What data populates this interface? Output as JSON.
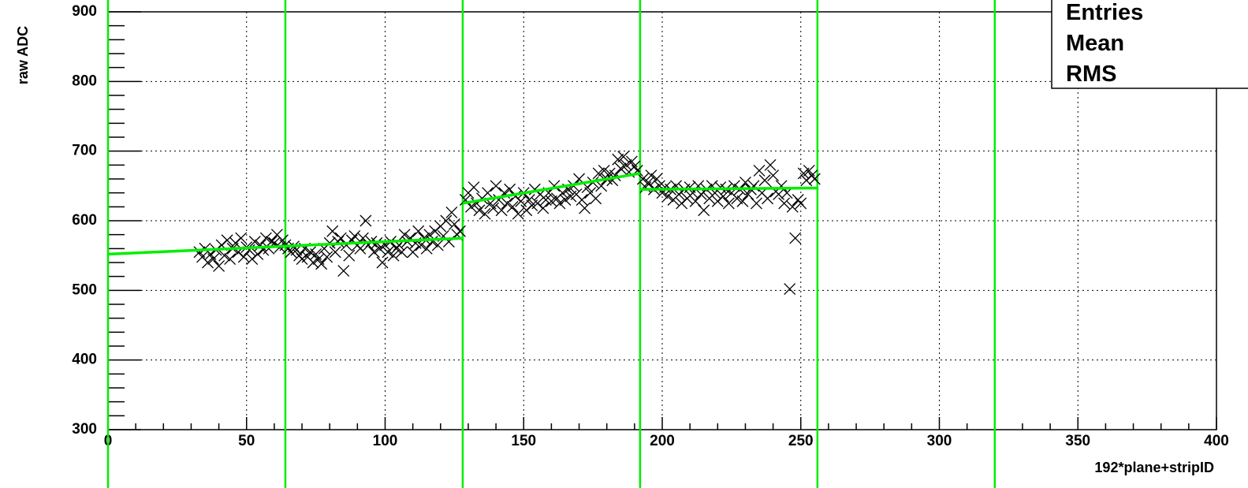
{
  "chart_data": {
    "type": "scatter",
    "x_label": "192*plane+stripID",
    "y_label": "raw ADC",
    "stats_labels": [
      "Entries",
      "Mean",
      "RMS"
    ],
    "xlim": [
      0,
      400
    ],
    "ylim": [
      300,
      900
    ],
    "xticks": [
      0,
      50,
      100,
      150,
      200,
      250,
      300,
      350,
      400
    ],
    "yticks": [
      300,
      400,
      500,
      600,
      700,
      800,
      900
    ],
    "xminorticks": [
      10,
      20,
      30,
      40,
      60,
      70,
      80,
      90,
      110,
      120,
      130,
      140,
      160,
      170,
      180,
      190,
      210,
      220,
      230,
      240,
      260,
      270,
      280,
      290,
      310,
      320,
      330,
      340,
      360,
      370,
      380,
      390
    ],
    "yminorticks": [
      320,
      340,
      360,
      380,
      420,
      440,
      460,
      480,
      520,
      540,
      560,
      580,
      620,
      640,
      660,
      680,
      720,
      740,
      760,
      780,
      820,
      840,
      860,
      880
    ],
    "grid": true,
    "color": "#000000",
    "line_color": "#00ee00",
    "vlines": [
      0,
      64,
      128,
      192,
      256,
      320
    ],
    "fits": [
      {
        "x": [
          0,
          128
        ],
        "values": [
          552,
          575
        ]
      },
      {
        "x": [
          128,
          192
        ],
        "values": [
          625,
          668
        ]
      },
      {
        "x": [
          192,
          256
        ],
        "values": [
          645,
          647
        ]
      }
    ],
    "x": [
      33,
      34,
      35,
      36,
      37,
      38,
      39,
      40,
      41,
      42,
      43,
      44,
      45,
      46,
      47,
      48,
      49,
      50,
      51,
      52,
      53,
      54,
      55,
      56,
      57,
      58,
      59,
      60,
      61,
      62,
      63,
      64,
      65,
      66,
      67,
      68,
      69,
      70,
      71,
      72,
      73,
      74,
      75,
      76,
      77,
      78,
      79,
      80,
      81,
      82,
      83,
      84,
      85,
      86,
      87,
      88,
      89,
      90,
      91,
      92,
      93,
      94,
      95,
      96,
      97,
      98,
      99,
      100,
      101,
      102,
      103,
      104,
      105,
      106,
      107,
      108,
      109,
      110,
      111,
      112,
      113,
      114,
      115,
      116,
      117,
      118,
      119,
      120,
      121,
      122,
      123,
      124,
      125,
      126,
      127,
      129,
      130,
      131,
      132,
      133,
      134,
      135,
      136,
      137,
      138,
      139,
      140,
      141,
      142,
      143,
      144,
      145,
      146,
      147,
      148,
      149,
      150,
      151,
      152,
      153,
      154,
      155,
      156,
      157,
      158,
      159,
      160,
      161,
      162,
      163,
      164,
      165,
      166,
      167,
      168,
      169,
      170,
      171,
      172,
      173,
      174,
      175,
      176,
      177,
      178,
      179,
      180,
      181,
      182,
      183,
      184,
      185,
      186,
      187,
      188,
      189,
      190,
      191,
      193,
      194,
      195,
      196,
      197,
      198,
      199,
      200,
      201,
      202,
      203,
      204,
      205,
      206,
      207,
      208,
      209,
      210,
      211,
      212,
      213,
      214,
      215,
      216,
      217,
      218,
      219,
      220,
      221,
      222,
      223,
      224,
      225,
      226,
      227,
      228,
      229,
      230,
      231,
      232,
      233,
      234,
      235,
      236,
      237,
      238,
      239,
      240,
      241,
      242,
      243,
      244,
      245,
      246,
      247,
      248,
      249,
      250,
      251,
      252,
      253,
      254,
      255
    ],
    "values": [
      555,
      548,
      560,
      540,
      552,
      545,
      558,
      535,
      565,
      550,
      572,
      545,
      560,
      568,
      555,
      575,
      548,
      562,
      558,
      545,
      570,
      552,
      565,
      558,
      575,
      560,
      570,
      568,
      580,
      562,
      572,
      565,
      560,
      555,
      563,
      558,
      550,
      545,
      560,
      548,
      555,
      540,
      552,
      545,
      538,
      560,
      548,
      568,
      585,
      555,
      570,
      575,
      528,
      565,
      550,
      572,
      578,
      565,
      560,
      575,
      600,
      565,
      570,
      555,
      568,
      560,
      540,
      565,
      555,
      570,
      550,
      560,
      565,
      555,
      580,
      570,
      575,
      555,
      568,
      585,
      565,
      575,
      560,
      580,
      570,
      585,
      565,
      592,
      578,
      600,
      570,
      612,
      595,
      580,
      585,
      630,
      640,
      620,
      648,
      625,
      615,
      632,
      610,
      640,
      625,
      618,
      650,
      630,
      615,
      640,
      625,
      645,
      620,
      635,
      610,
      628,
      640,
      615,
      630,
      622,
      645,
      625,
      638,
      618,
      630,
      640,
      628,
      650,
      632,
      625,
      640,
      630,
      645,
      635,
      650,
      638,
      660,
      630,
      618,
      648,
      640,
      655,
      632,
      668,
      650,
      672,
      660,
      668,
      658,
      665,
      688,
      675,
      692,
      680,
      670,
      685,
      678,
      672,
      660,
      648,
      655,
      665,
      645,
      660,
      650,
      640,
      648,
      635,
      645,
      630,
      650,
      638,
      625,
      645,
      632,
      648,
      640,
      628,
      650,
      638,
      615,
      645,
      632,
      650,
      640,
      628,
      648,
      635,
      645,
      625,
      640,
      650,
      632,
      645,
      628,
      655,
      638,
      645,
      650,
      625,
      672,
      640,
      658,
      632,
      680,
      665,
      642,
      638,
      650,
      625,
      640,
      502,
      620,
      575,
      630,
      625,
      668,
      658,
      672,
      665,
      660
    ]
  }
}
